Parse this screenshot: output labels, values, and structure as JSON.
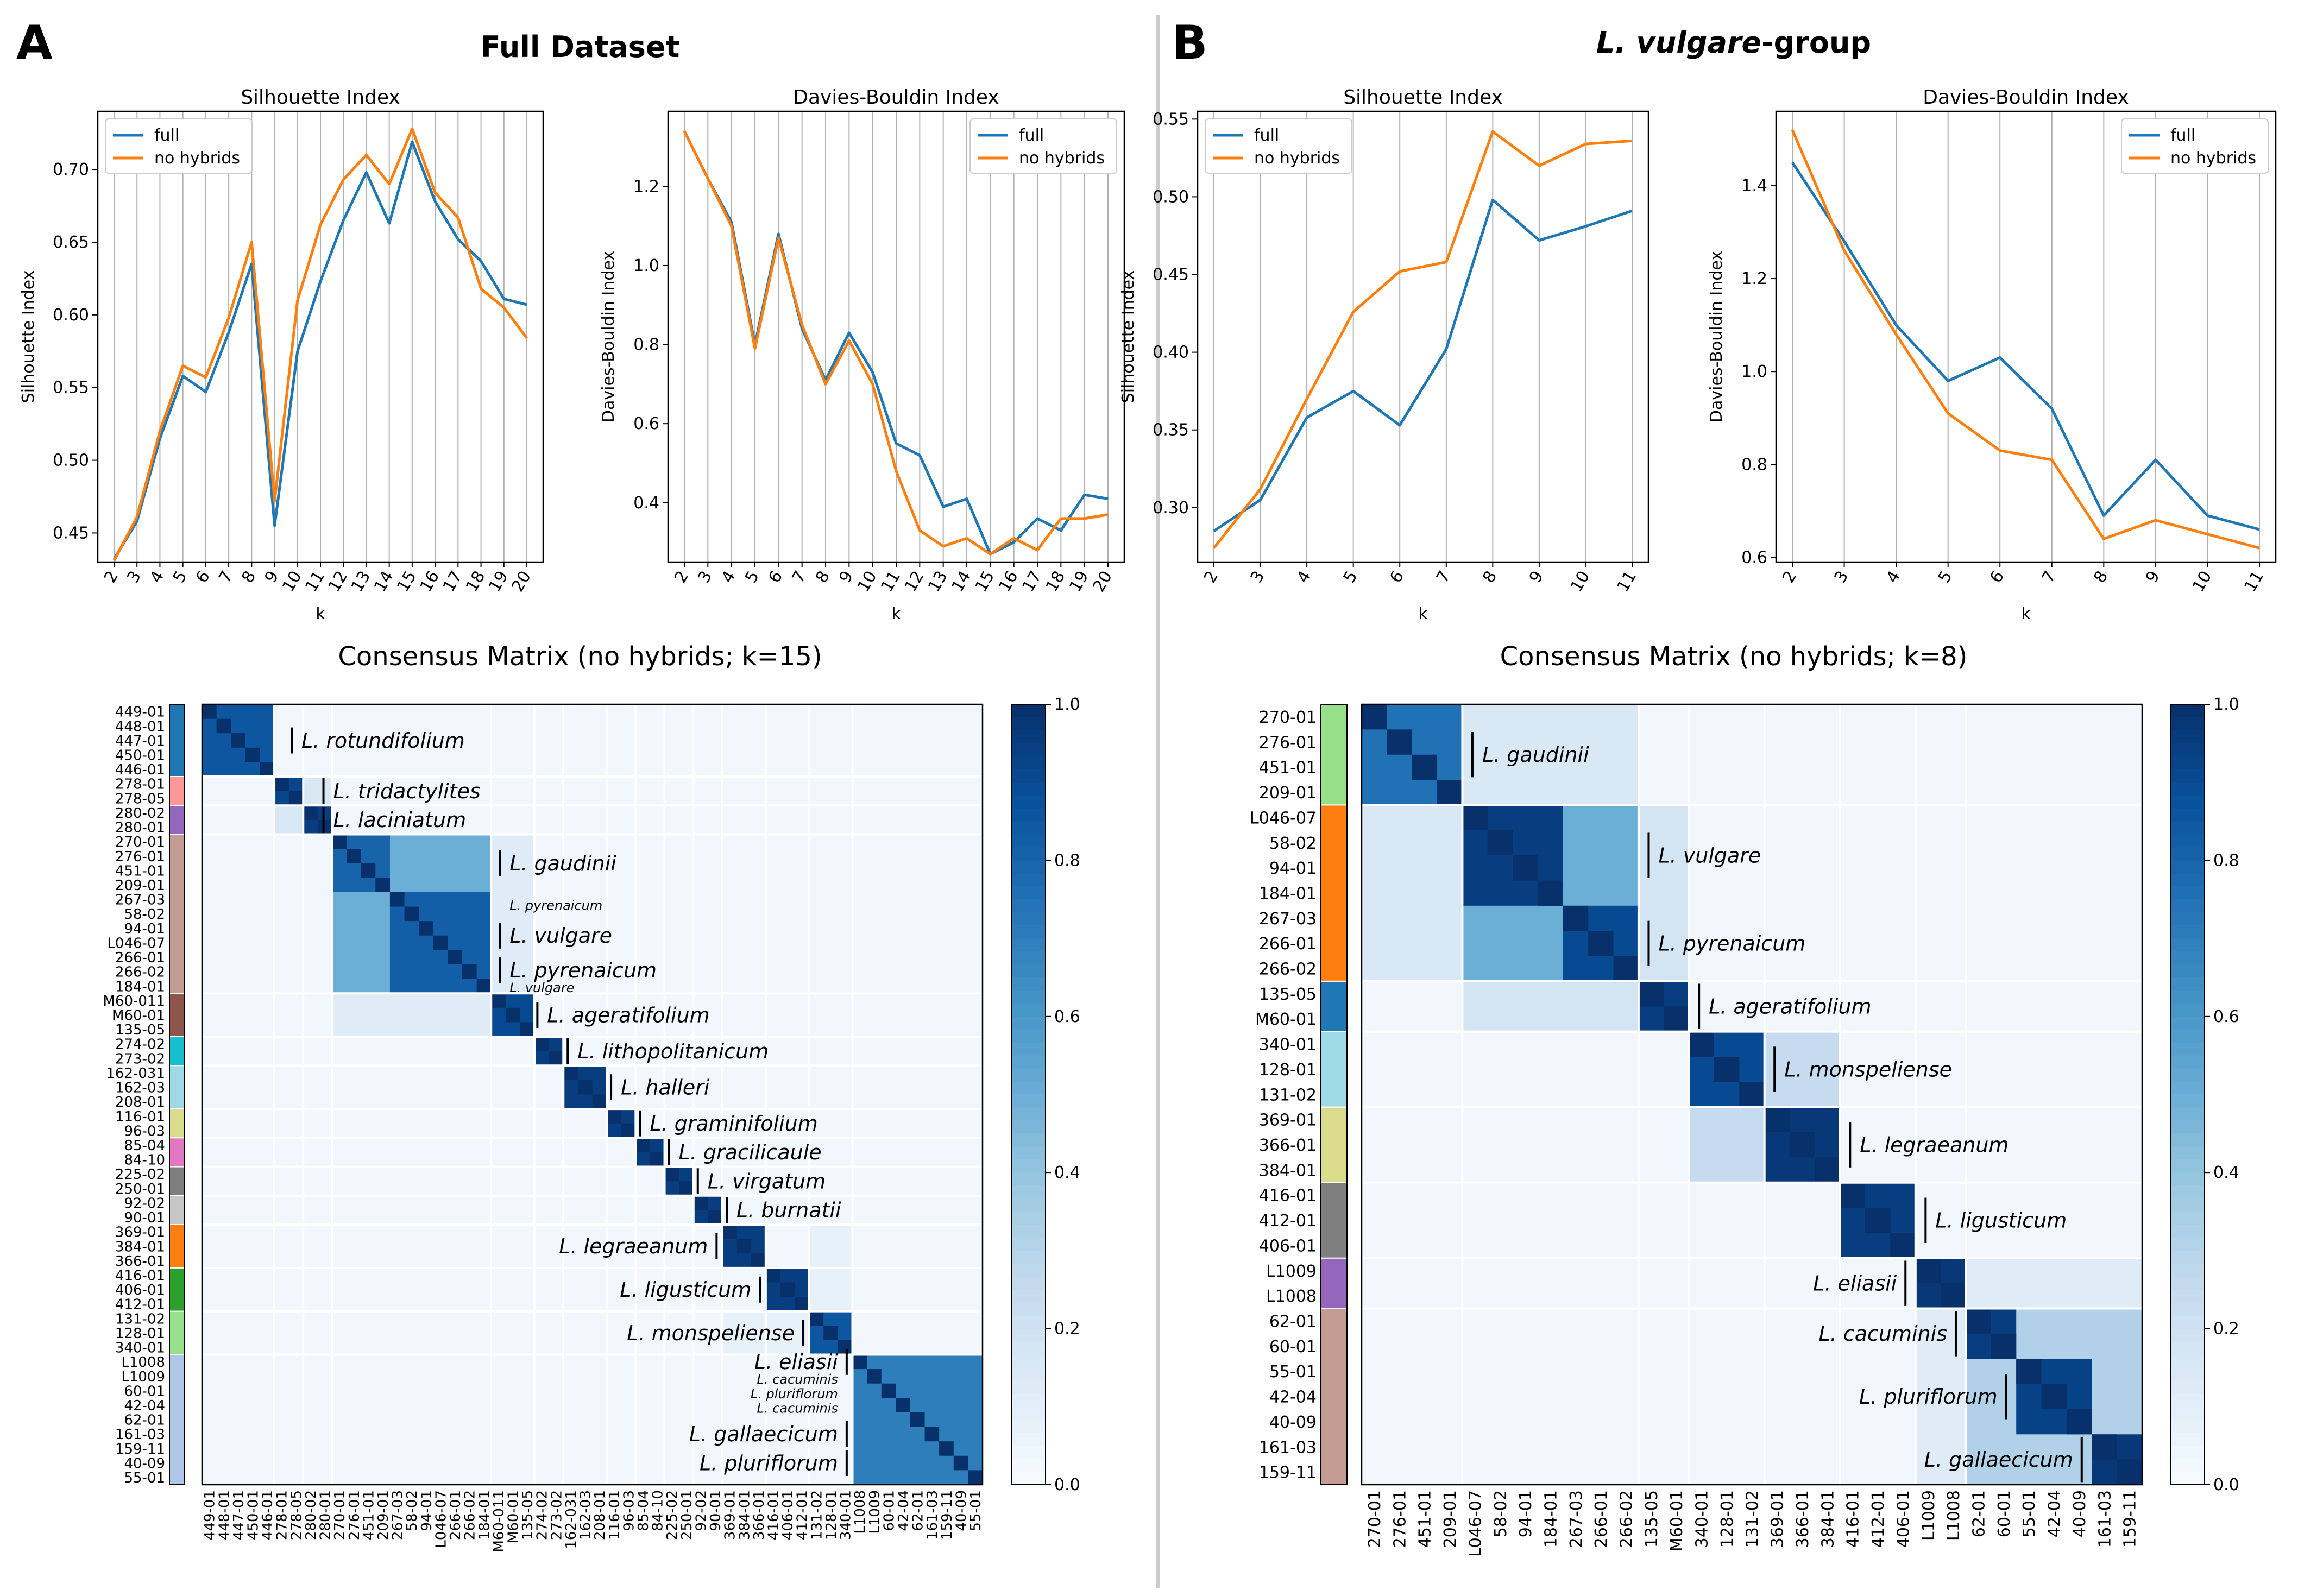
{
  "panels": [
    {
      "letter": "A",
      "title": "Full Dataset",
      "title_species": "",
      "title_rest": "",
      "matrix_title": "Consensus Matrix (no hybrids; k=15)"
    },
    {
      "letter": "B",
      "title": "",
      "title_species": "L. vulgare",
      "title_rest": "-group",
      "matrix_title": "Consensus Matrix (no hybrids; k=8)"
    }
  ],
  "colors": {
    "full": "#1f77b4",
    "no_hybrids": "#ff7f0e",
    "cmap_low": "#f7fbff",
    "cmap_high": "#08306b",
    "divider": "#cccccc"
  },
  "colorbar_ticks": [
    "0.0",
    "0.2",
    "0.4",
    "0.6",
    "0.8",
    "1.0"
  ],
  "chart_data": [
    {
      "type": "line",
      "panel": "A",
      "title": "Silhouette Index",
      "xlabel": "k",
      "ylabel": "Silhouette Index",
      "x": [
        2,
        3,
        4,
        5,
        6,
        7,
        8,
        9,
        10,
        11,
        12,
        13,
        14,
        15,
        16,
        17,
        18,
        19,
        20
      ],
      "ylim": [
        0.43,
        0.74
      ],
      "yticks": [
        0.45,
        0.5,
        0.55,
        0.6,
        0.65,
        0.7
      ],
      "grid": "vertical",
      "legend": "top-left",
      "series": [
        {
          "name": "full",
          "values": [
            0.432,
            0.458,
            0.515,
            0.558,
            0.547,
            0.588,
            0.635,
            0.455,
            0.575,
            0.623,
            0.665,
            0.698,
            0.663,
            0.719,
            0.678,
            0.652,
            0.637,
            0.611,
            0.607
          ]
        },
        {
          "name": "no hybrids",
          "values": [
            0.431,
            0.461,
            0.52,
            0.565,
            0.557,
            0.598,
            0.65,
            0.472,
            0.61,
            0.662,
            0.693,
            0.71,
            0.69,
            0.728,
            0.684,
            0.667,
            0.618,
            0.605,
            0.584
          ]
        }
      ]
    },
    {
      "type": "line",
      "panel": "A",
      "title": "Davies-Bouldin Index",
      "xlabel": "k",
      "ylabel": "Davies-Bouldin Index",
      "x": [
        2,
        3,
        4,
        5,
        6,
        7,
        8,
        9,
        10,
        11,
        12,
        13,
        14,
        15,
        16,
        17,
        18,
        19,
        20
      ],
      "ylim": [
        0.25,
        1.39
      ],
      "yticks": [
        0.4,
        0.6,
        0.8,
        1.0,
        1.2
      ],
      "grid": "vertical",
      "legend": "top-right",
      "series": [
        {
          "name": "full",
          "values": [
            1.34,
            1.22,
            1.11,
            0.8,
            1.08,
            0.84,
            0.71,
            0.83,
            0.73,
            0.55,
            0.52,
            0.39,
            0.41,
            0.27,
            0.3,
            0.36,
            0.33,
            0.42,
            0.41
          ]
        },
        {
          "name": "no hybrids",
          "values": [
            1.34,
            1.22,
            1.1,
            0.79,
            1.07,
            0.85,
            0.7,
            0.81,
            0.7,
            0.48,
            0.33,
            0.29,
            0.31,
            0.27,
            0.31,
            0.28,
            0.36,
            0.36,
            0.37
          ]
        }
      ]
    },
    {
      "type": "line",
      "panel": "B",
      "title": "Silhouette Index",
      "xlabel": "k",
      "ylabel": "Silhouette Index",
      "x": [
        2,
        3,
        4,
        5,
        6,
        7,
        8,
        9,
        10,
        11
      ],
      "ylim": [
        0.265,
        0.555
      ],
      "yticks": [
        0.3,
        0.35,
        0.4,
        0.45,
        0.5,
        0.55
      ],
      "grid": "vertical",
      "legend": "top-left",
      "series": [
        {
          "name": "full",
          "values": [
            0.285,
            0.305,
            0.358,
            0.375,
            0.353,
            0.402,
            0.498,
            0.472,
            0.481,
            0.491
          ]
        },
        {
          "name": "no hybrids",
          "values": [
            0.274,
            0.312,
            0.37,
            0.426,
            0.452,
            0.458,
            0.542,
            0.52,
            0.534,
            0.536
          ]
        }
      ]
    },
    {
      "type": "line",
      "panel": "B",
      "title": "Davies-Bouldin Index",
      "xlabel": "k",
      "ylabel": "Davies-Bouldin Index",
      "x": [
        2,
        3,
        4,
        5,
        6,
        7,
        8,
        9,
        10,
        11
      ],
      "ylim": [
        0.59,
        1.56
      ],
      "yticks": [
        0.6,
        0.8,
        1.0,
        1.2,
        1.4
      ],
      "grid": "vertical",
      "legend": "top-right",
      "series": [
        {
          "name": "full",
          "values": [
            1.45,
            1.28,
            1.1,
            0.98,
            1.03,
            0.92,
            0.69,
            0.81,
            0.69,
            0.66
          ]
        },
        {
          "name": "no hybrids",
          "values": [
            1.52,
            1.26,
            1.08,
            0.91,
            0.83,
            0.81,
            0.64,
            0.68,
            0.65,
            0.62
          ]
        }
      ]
    },
    {
      "type": "heatmap",
      "panel": "A",
      "title": "Consensus Matrix (no hybrids; k=15)",
      "labels": [
        "449-01",
        "448-01",
        "447-01",
        "450-01",
        "446-01",
        "278-01",
        "278-05",
        "280-02",
        "280-01",
        "270-01",
        "276-01",
        "451-01",
        "209-01",
        "267-03",
        "58-02",
        "94-01",
        "L046-07",
        "266-01",
        "266-02",
        "184-01",
        "M60-011",
        "M60-01",
        "135-05",
        "274-02",
        "273-02",
        "162-031",
        "162-03",
        "208-01",
        "116-01",
        "96-03",
        "85-04",
        "84-10",
        "225-02",
        "250-01",
        "92-02",
        "90-01",
        "369-01",
        "384-01",
        "366-01",
        "416-01",
        "406-01",
        "412-01",
        "131-02",
        "128-01",
        "340-01",
        "L1008",
        "L1009",
        "60-01",
        "42-04",
        "62-01",
        "161-03",
        "159-11",
        "40-09",
        "55-01"
      ],
      "groups": [
        {
          "start": 0,
          "end": 5,
          "color": "#1f77b4"
        },
        {
          "start": 5,
          "end": 7,
          "color": "#ff9896"
        },
        {
          "start": 7,
          "end": 9,
          "color": "#9467bd"
        },
        {
          "start": 9,
          "end": 20,
          "color": "#c49c94"
        },
        {
          "start": 20,
          "end": 23,
          "color": "#8c564b"
        },
        {
          "start": 23,
          "end": 25,
          "color": "#17becf"
        },
        {
          "start": 25,
          "end": 28,
          "color": "#9edae5"
        },
        {
          "start": 28,
          "end": 30,
          "color": "#dbdb8d"
        },
        {
          "start": 30,
          "end": 32,
          "color": "#e377c2"
        },
        {
          "start": 32,
          "end": 34,
          "color": "#7f7f7f"
        },
        {
          "start": 34,
          "end": 36,
          "color": "#c7c7c7"
        },
        {
          "start": 36,
          "end": 39,
          "color": "#ff7f0e"
        },
        {
          "start": 39,
          "end": 42,
          "color": "#2ca02c"
        },
        {
          "start": 42,
          "end": 45,
          "color": "#98df8a"
        },
        {
          "start": 45,
          "end": 54,
          "color": "#aec7e8"
        }
      ],
      "blocks": [
        {
          "start": 0,
          "end": 5,
          "value": 0.85
        },
        {
          "start": 5,
          "end": 7,
          "value": 0.92
        },
        {
          "start": 7,
          "end": 9,
          "value": 0.95
        },
        {
          "start": 9,
          "end": 13,
          "value": 0.8
        },
        {
          "start": 13,
          "end": 20,
          "value": 0.82
        },
        {
          "start": 20,
          "end": 23,
          "value": 0.9
        },
        {
          "start": 23,
          "end": 25,
          "value": 0.95
        },
        {
          "start": 25,
          "end": 28,
          "value": 0.95
        },
        {
          "start": 28,
          "end": 30,
          "value": 0.95
        },
        {
          "start": 30,
          "end": 32,
          "value": 0.95
        },
        {
          "start": 32,
          "end": 34,
          "value": 0.95
        },
        {
          "start": 34,
          "end": 36,
          "value": 0.95
        },
        {
          "start": 36,
          "end": 39,
          "value": 0.95
        },
        {
          "start": 39,
          "end": 42,
          "value": 0.95
        },
        {
          "start": 42,
          "end": 45,
          "value": 0.85
        },
        {
          "start": 45,
          "end": 54,
          "value": 0.7
        }
      ],
      "offdiag": [
        {
          "r0": 0,
          "r1": 5,
          "c0": 0,
          "c1": 5,
          "value": 0.85
        },
        {
          "r0": 9,
          "r1": 20,
          "c0": 9,
          "c1": 20,
          "value": 0.5
        },
        {
          "r0": 20,
          "r1": 23,
          "c0": 9,
          "c1": 20,
          "value": 0.12
        },
        {
          "r0": 9,
          "r1": 20,
          "c0": 20,
          "c1": 23,
          "value": 0.12
        },
        {
          "r0": 5,
          "r1": 7,
          "c0": 7,
          "c1": 9,
          "value": 0.15
        },
        {
          "r0": 7,
          "r1": 9,
          "c0": 5,
          "c1": 7,
          "value": 0.15
        },
        {
          "r0": 42,
          "r1": 45,
          "c0": 36,
          "c1": 42,
          "value": 0.08
        },
        {
          "r0": 36,
          "r1": 42,
          "c0": 42,
          "c1": 45,
          "value": 0.08
        }
      ],
      "annotations": [
        {
          "row": 2.5,
          "col": 6.2,
          "text": "L. rotundifolium",
          "small": false
        },
        {
          "row": 6,
          "col": 8.4,
          "text": "L. tridactylites",
          "small": false
        },
        {
          "row": 8,
          "col": 8.4,
          "text": "L. laciniatum",
          "small": false
        },
        {
          "row": 11,
          "col": 20.6,
          "text": "L. gaudinii",
          "small": false
        },
        {
          "row": 13.9,
          "col": 20.6,
          "text": "L. pyrenaicum",
          "small": true
        },
        {
          "row": 16,
          "col": 20.6,
          "text": "L. vulgare",
          "small": false
        },
        {
          "row": 18.4,
          "col": 20.6,
          "text": "L. pyrenaicum",
          "small": false
        },
        {
          "row": 19.6,
          "col": 20.6,
          "text": "L. vulgare",
          "small": true
        },
        {
          "row": 21.5,
          "col": 23.2,
          "text": "L. ageratifolium",
          "small": false
        },
        {
          "row": 24,
          "col": 25.3,
          "text": "L. lithopolitanicum",
          "small": false
        },
        {
          "row": 26.5,
          "col": 28.3,
          "text": "L. halleri",
          "small": false
        },
        {
          "row": 29,
          "col": 30.3,
          "text": "L. graminifolium",
          "small": false
        },
        {
          "row": 31,
          "col": 32.3,
          "text": "L. gracilicaule",
          "small": false
        },
        {
          "row": 33,
          "col": 34.3,
          "text": "L. virgatum",
          "small": false
        },
        {
          "row": 35,
          "col": 36.3,
          "text": "L. burnatii",
          "small": false
        },
        {
          "row": 37.5,
          "col": 35.6,
          "text": "L. legraeanum",
          "small": false,
          "left": true
        },
        {
          "row": 40.5,
          "col": 38.6,
          "text": "L. ligusticum",
          "small": false,
          "left": true
        },
        {
          "row": 43.5,
          "col": 41.6,
          "text": "L. monspeliense",
          "small": false,
          "left": true
        },
        {
          "row": 45.5,
          "col": 44.6,
          "text": "L. eliasii",
          "small": false,
          "left": true
        },
        {
          "row": 46.7,
          "col": 44.6,
          "text": "L. cacuminis",
          "small": true,
          "left": true
        },
        {
          "row": 47.7,
          "col": 44.6,
          "text": "L. pluriflorum",
          "small": true,
          "left": true
        },
        {
          "row": 48.7,
          "col": 44.6,
          "text": "L. cacuminis",
          "small": true,
          "left": true
        },
        {
          "row": 50.5,
          "col": 44.6,
          "text": "L. gallaecicum",
          "small": false,
          "left": true
        },
        {
          "row": 52.5,
          "col": 44.6,
          "text": "L. pluriflorum",
          "small": false,
          "left": true
        }
      ]
    },
    {
      "type": "heatmap",
      "panel": "B",
      "title": "Consensus Matrix (no hybrids; k=8)",
      "labels": [
        "270-01",
        "276-01",
        "451-01",
        "209-01",
        "L046-07",
        "58-02",
        "94-01",
        "184-01",
        "267-03",
        "266-01",
        "266-02",
        "135-05",
        "M60-01",
        "340-01",
        "128-01",
        "131-02",
        "369-01",
        "366-01",
        "384-01",
        "416-01",
        "412-01",
        "406-01",
        "L1009",
        "L1008",
        "62-01",
        "60-01",
        "55-01",
        "42-04",
        "40-09",
        "161-03",
        "159-11"
      ],
      "groups": [
        {
          "start": 0,
          "end": 4,
          "color": "#98df8a"
        },
        {
          "start": 4,
          "end": 11,
          "color": "#ff7f0e"
        },
        {
          "start": 11,
          "end": 13,
          "color": "#1f77b4"
        },
        {
          "start": 13,
          "end": 16,
          "color": "#9edae5"
        },
        {
          "start": 16,
          "end": 19,
          "color": "#dbdb8d"
        },
        {
          "start": 19,
          "end": 22,
          "color": "#7f7f7f"
        },
        {
          "start": 22,
          "end": 24,
          "color": "#9467bd"
        },
        {
          "start": 24,
          "end": 31,
          "color": "#c49c94"
        }
      ],
      "blocks": [
        {
          "start": 0,
          "end": 4,
          "value": 0.75
        },
        {
          "start": 4,
          "end": 8,
          "value": 0.95
        },
        {
          "start": 8,
          "end": 11,
          "value": 0.9
        },
        {
          "start": 11,
          "end": 13,
          "value": 0.95
        },
        {
          "start": 13,
          "end": 16,
          "value": 0.9
        },
        {
          "start": 16,
          "end": 19,
          "value": 0.97
        },
        {
          "start": 19,
          "end": 22,
          "value": 0.95
        },
        {
          "start": 22,
          "end": 24,
          "value": 0.97
        },
        {
          "start": 24,
          "end": 26,
          "value": 0.95
        },
        {
          "start": 26,
          "end": 29,
          "value": 0.93
        },
        {
          "start": 29,
          "end": 31,
          "value": 0.97
        }
      ],
      "offdiag": [
        {
          "r0": 0,
          "r1": 4,
          "c0": 0,
          "c1": 4,
          "value": 0.6
        },
        {
          "r0": 4,
          "r1": 11,
          "c0": 4,
          "c1": 11,
          "value": 0.5
        },
        {
          "r0": 0,
          "r1": 4,
          "c0": 4,
          "c1": 11,
          "value": 0.15
        },
        {
          "r0": 4,
          "r1": 11,
          "c0": 0,
          "c1": 4,
          "value": 0.15
        },
        {
          "r0": 4,
          "r1": 11,
          "c0": 11,
          "c1": 13,
          "value": 0.18
        },
        {
          "r0": 11,
          "r1": 13,
          "c0": 4,
          "c1": 11,
          "value": 0.18
        },
        {
          "r0": 13,
          "r1": 16,
          "c0": 16,
          "c1": 19,
          "value": 0.25
        },
        {
          "r0": 16,
          "r1": 19,
          "c0": 13,
          "c1": 16,
          "value": 0.25
        },
        {
          "r0": 24,
          "r1": 31,
          "c0": 24,
          "c1": 31,
          "value": 0.32
        },
        {
          "r0": 22,
          "r1": 24,
          "c0": 24,
          "c1": 31,
          "value": 0.12
        },
        {
          "r0": 24,
          "r1": 31,
          "c0": 22,
          "c1": 24,
          "value": 0.12
        }
      ],
      "annotations": [
        {
          "row": 2,
          "col": 4.4,
          "text": "L. gaudinii",
          "small": false
        },
        {
          "row": 6,
          "col": 11.4,
          "text": "L. vulgare",
          "small": false
        },
        {
          "row": 9.5,
          "col": 11.4,
          "text": "L. pyrenaicum",
          "small": false
        },
        {
          "row": 12,
          "col": 13.4,
          "text": "L. ageratifolium",
          "small": false
        },
        {
          "row": 14.5,
          "col": 16.4,
          "text": "L. monspeliense",
          "small": false
        },
        {
          "row": 17.5,
          "col": 19.4,
          "text": "L. legraeanum",
          "small": false
        },
        {
          "row": 20.5,
          "col": 22.4,
          "text": "L. ligusticum",
          "small": false
        },
        {
          "row": 23,
          "col": 21.6,
          "text": "L. eliasii",
          "small": false,
          "left": true
        },
        {
          "row": 25,
          "col": 23.6,
          "text": "L. cacuminis",
          "small": false,
          "left": true
        },
        {
          "row": 27.5,
          "col": 25.6,
          "text": "L. pluriflorum",
          "small": false,
          "left": true
        },
        {
          "row": 30,
          "col": 28.6,
          "text": "L. gallaecicum",
          "small": false,
          "left": true
        }
      ]
    }
  ]
}
